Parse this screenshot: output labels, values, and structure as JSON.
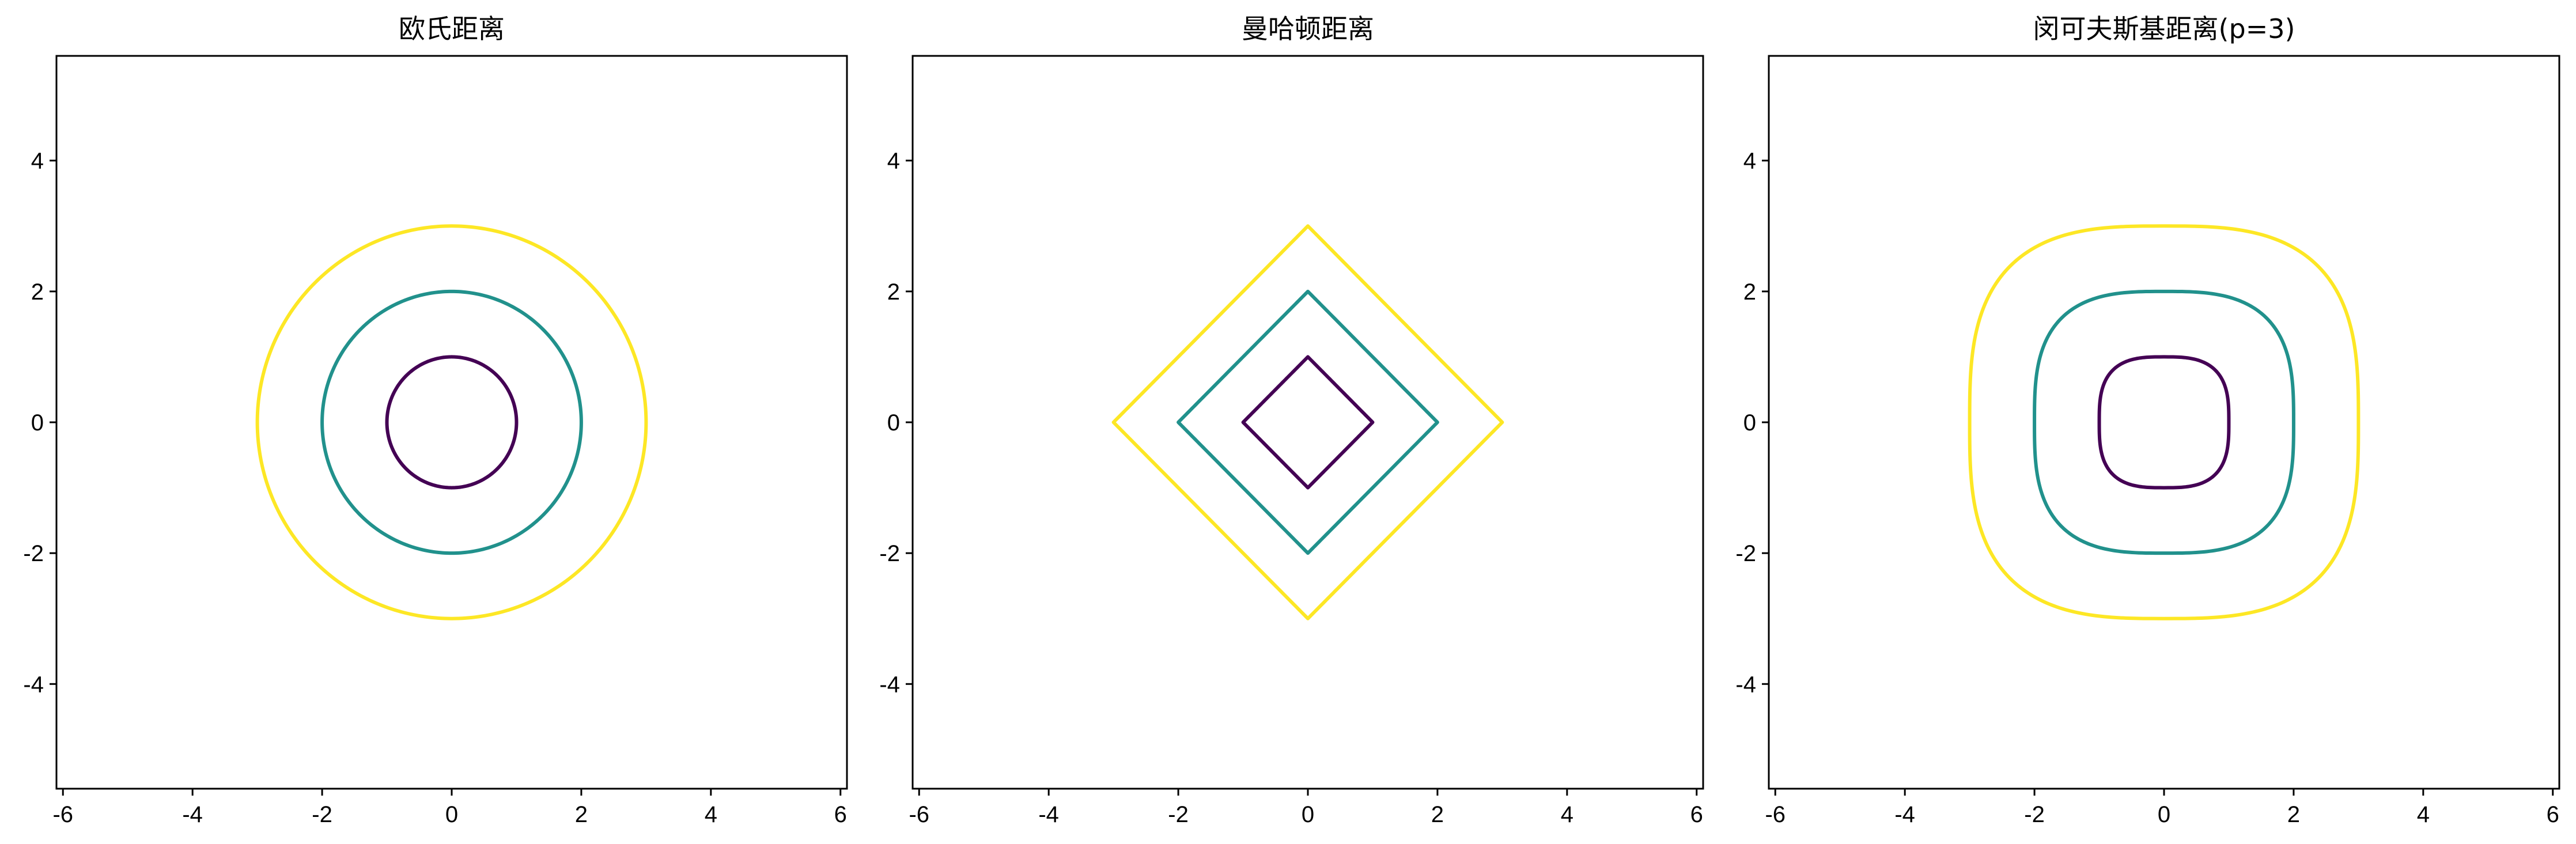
{
  "chart_data": [
    {
      "type": "line",
      "title": "欧氏距离",
      "metric": "euclidean",
      "p": 2,
      "xlim": [
        -6.1,
        6.1
      ],
      "ylim": [
        -5.6,
        5.6
      ],
      "xticks": [
        -6,
        -4,
        -2,
        0,
        2,
        4,
        6
      ],
      "yticks": [
        -4,
        -2,
        0,
        2,
        4
      ],
      "xtick_labels": [
        "-6",
        "-4",
        "-2",
        "0",
        "2",
        "4",
        "6"
      ],
      "ytick_labels": [
        "-4",
        "-2",
        "0",
        "2",
        "4"
      ],
      "series": [
        {
          "level": 1,
          "color": "#440154"
        },
        {
          "level": 2,
          "color": "#21918c"
        },
        {
          "level": 3,
          "color": "#fde725"
        }
      ],
      "grid": false
    },
    {
      "type": "line",
      "title": "曼哈顿距离",
      "metric": "manhattan",
      "p": 1,
      "xlim": [
        -6.1,
        6.1
      ],
      "ylim": [
        -5.6,
        5.6
      ],
      "xticks": [
        -6,
        -4,
        -2,
        0,
        2,
        4,
        6
      ],
      "yticks": [
        -4,
        -2,
        0,
        2,
        4
      ],
      "xtick_labels": [
        "-6",
        "-4",
        "-2",
        "0",
        "2",
        "4",
        "6"
      ],
      "ytick_labels": [
        "-4",
        "-2",
        "0",
        "2",
        "4"
      ],
      "series": [
        {
          "level": 1,
          "color": "#440154"
        },
        {
          "level": 2,
          "color": "#21918c"
        },
        {
          "level": 3,
          "color": "#fde725"
        }
      ],
      "grid": false
    },
    {
      "type": "line",
      "title": "闵可夫斯基距离(p=3)",
      "metric": "minkowski",
      "p": 3,
      "xlim": [
        -6.1,
        6.1
      ],
      "ylim": [
        -5.6,
        5.6
      ],
      "xticks": [
        -6,
        -4,
        -2,
        0,
        2,
        4,
        6
      ],
      "yticks": [
        -4,
        -2,
        0,
        2,
        4
      ],
      "xtick_labels": [
        "-6",
        "-4",
        "-2",
        "0",
        "2",
        "4",
        "6"
      ],
      "ytick_labels": [
        "-4",
        "-2",
        "0",
        "2",
        "4"
      ],
      "series": [
        {
          "level": 1,
          "color": "#440154"
        },
        {
          "level": 2,
          "color": "#21918c"
        },
        {
          "level": 3,
          "color": "#fde725"
        }
      ],
      "grid": false
    }
  ]
}
